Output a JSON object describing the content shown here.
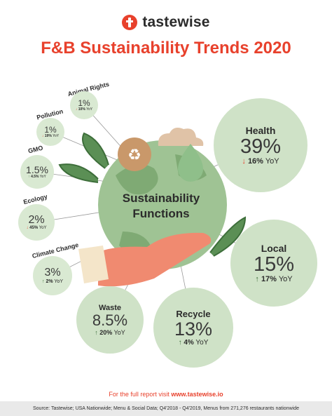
{
  "brand": {
    "name": "tastewise",
    "icon": "tastewise-logo-icon",
    "color": "#e8412c"
  },
  "title": "F&B Sustainability Trends 2020",
  "center_label": "Sustainability Functions",
  "colors": {
    "accent": "#e8412c",
    "bubble": "#cfe2c7",
    "bubble_small": "#d9e9d2",
    "up": "#3d6e3a",
    "down": "#e8412c"
  },
  "chart_data": {
    "type": "bubble",
    "title": "F&B Sustainability Trends 2020",
    "series": [
      {
        "name": "Health",
        "value": "39%",
        "share": 39,
        "yoy": "16%",
        "yoy_direction": "down"
      },
      {
        "name": "Local",
        "value": "15%",
        "share": 15,
        "yoy": "17%",
        "yoy_direction": "up"
      },
      {
        "name": "Recycle",
        "value": "13%",
        "share": 13,
        "yoy": "4%",
        "yoy_direction": "up"
      },
      {
        "name": "Waste",
        "value": "8.5%",
        "share": 8.5,
        "yoy": "20%",
        "yoy_direction": "up"
      },
      {
        "name": "Climate Change",
        "value": "3%",
        "share": 3,
        "yoy": "2%",
        "yoy_direction": "up"
      },
      {
        "name": "Ecology",
        "value": "2%",
        "share": 2,
        "yoy": "45%",
        "yoy_direction": "down"
      },
      {
        "name": "GMO",
        "value": "1.5%",
        "share": 1.5,
        "yoy": "4.5%",
        "yoy_direction": "up"
      },
      {
        "name": "Pollution",
        "value": "1%",
        "share": 1,
        "yoy": "19%",
        "yoy_direction": "down"
      },
      {
        "name": "Animal Rights",
        "value": "1%",
        "share": 1,
        "yoy": "10%",
        "yoy_direction": "down"
      }
    ],
    "yoy_suffix": "YoY"
  },
  "footer": {
    "prefix": "For the full report visit ",
    "link": "www.tastewise.io",
    "source": "Source:  Tastewise; USA Nationwide; Menu & Social Data; Q4'2018 - Q4'2019, Menus from 271,276 restaurants nationwide"
  }
}
